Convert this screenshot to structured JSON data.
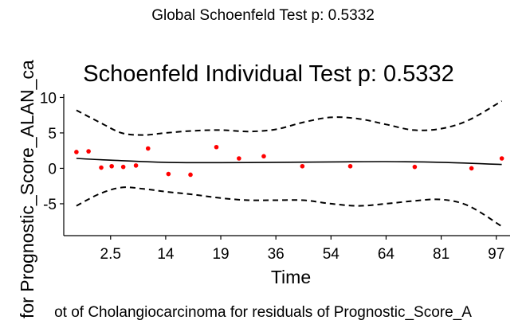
{
  "chart_data": {
    "type": "scatter",
    "global_title": "Global Schoenfeld Test p: 0.5332",
    "title": "Schoenfeld Individual Test p: 0.5332",
    "xlabel": "Time",
    "ylabel": "for Prognostic_Score_ALAN_ca",
    "caption": "ot of Cholangiocarcinoma for residuals of Prognostic_Score_A",
    "y_ticks": [
      -5,
      0,
      5,
      10
    ],
    "y_tick_labels": [
      "-5",
      "0",
      "5",
      "10"
    ],
    "x_tick_labels": [
      "2.5",
      "14",
      "19",
      "36",
      "54",
      "64",
      "81",
      "97"
    ],
    "ylim": [
      -9.5,
      10.5
    ],
    "x_index_range": [
      0.15,
      8.25
    ],
    "x_tick_index": [
      1,
      2,
      3,
      4,
      5,
      6,
      7,
      8
    ],
    "points": {
      "x_index": [
        0.38,
        0.6,
        0.83,
        1.02,
        1.23,
        1.46,
        1.68,
        2.05,
        2.45,
        2.92,
        3.33,
        3.78,
        4.48,
        5.35,
        6.52,
        7.55,
        8.1
      ],
      "y": [
        2.3,
        2.4,
        0.1,
        0.3,
        0.2,
        0.4,
        2.8,
        -0.8,
        -0.9,
        3.0,
        1.4,
        1.7,
        0.3,
        0.3,
        0.2,
        0.0,
        1.4
      ],
      "color": "#ff0000"
    },
    "fit_line": {
      "x_index": [
        0.38,
        1.0,
        2.0,
        3.0,
        4.0,
        5.0,
        6.0,
        7.0,
        8.1
      ],
      "y": [
        1.4,
        1.15,
        0.85,
        0.8,
        0.85,
        0.9,
        0.95,
        0.85,
        0.55
      ]
    },
    "upper_band": {
      "x_index": [
        0.38,
        0.8,
        1.2,
        1.6,
        2.0,
        2.5,
        3.0,
        3.5,
        4.0,
        4.5,
        5.0,
        5.5,
        6.0,
        6.5,
        7.0,
        7.5,
        8.1
      ],
      "y": [
        8.2,
        6.5,
        5.0,
        4.7,
        5.0,
        5.3,
        5.4,
        5.2,
        5.5,
        6.5,
        7.2,
        7.0,
        6.2,
        5.4,
        5.6,
        6.8,
        9.5
      ]
    },
    "lower_band": {
      "x_index": [
        0.38,
        0.8,
        1.2,
        1.6,
        2.0,
        2.5,
        3.0,
        3.5,
        4.0,
        4.5,
        5.0,
        5.5,
        6.0,
        6.5,
        7.0,
        7.5,
        8.1
      ],
      "y": [
        -5.3,
        -3.6,
        -2.7,
        -2.9,
        -3.3,
        -3.7,
        -4.2,
        -4.5,
        -4.5,
        -4.5,
        -5.0,
        -5.3,
        -5.0,
        -4.6,
        -4.4,
        -5.3,
        -8.2
      ]
    }
  }
}
